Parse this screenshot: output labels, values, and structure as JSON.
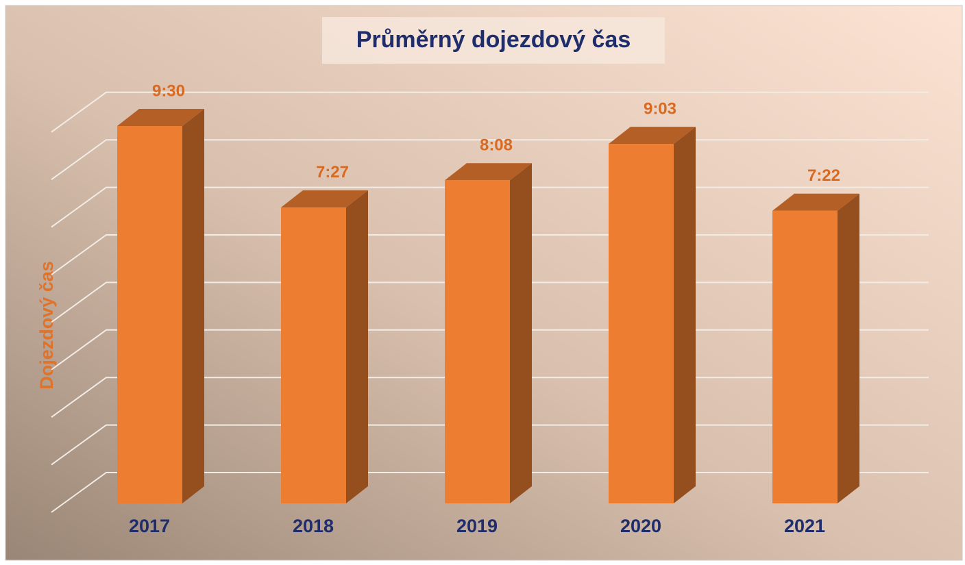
{
  "chart_data": {
    "type": "bar3d",
    "title": "Průměrný dojezdový čas",
    "y_label": "Dojezdový čas",
    "categories": [
      "2017",
      "2018",
      "2019",
      "2020",
      "2021"
    ],
    "values": [
      570,
      447,
      488,
      543,
      442
    ],
    "value_labels": [
      "9:30",
      "7:27",
      "8:08",
      "9:03",
      "7:22"
    ],
    "color": "#ed7d31",
    "ylim": [
      0,
      600
    ],
    "grid": true
  }
}
